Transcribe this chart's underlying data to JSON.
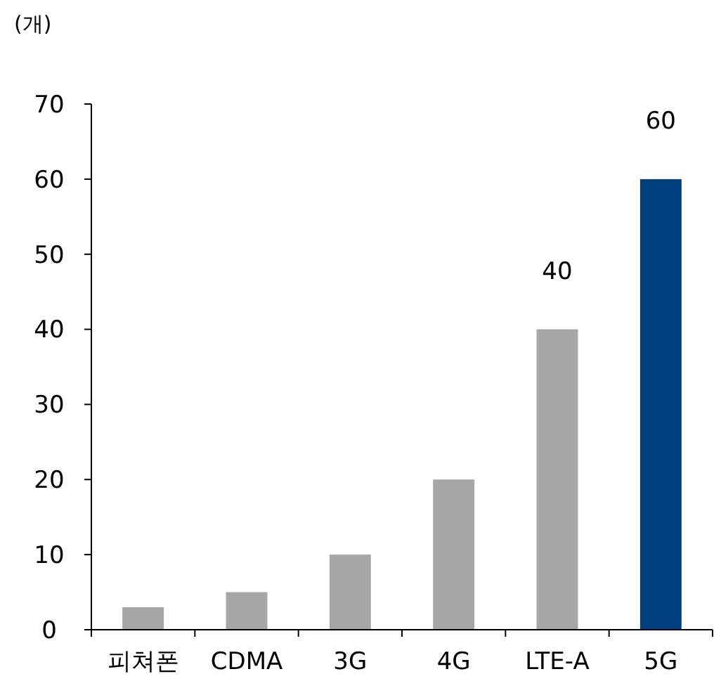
{
  "chart_data": {
    "type": "bar",
    "ylabel": "(개)",
    "categories": [
      "피쳐폰",
      "CDMA",
      "3G",
      "4G",
      "LTE-A",
      "5G"
    ],
    "values": [
      3,
      5,
      10,
      20,
      40,
      60
    ],
    "colors": [
      "#a6a6a6",
      "#a6a6a6",
      "#a6a6a6",
      "#a6a6a6",
      "#a6a6a6",
      "#003f7f"
    ],
    "value_labels": [
      null,
      null,
      null,
      null,
      "40",
      "60"
    ],
    "ylim": [
      0,
      70
    ],
    "yticks": [
      0,
      10,
      20,
      30,
      40,
      50,
      60,
      70
    ]
  }
}
